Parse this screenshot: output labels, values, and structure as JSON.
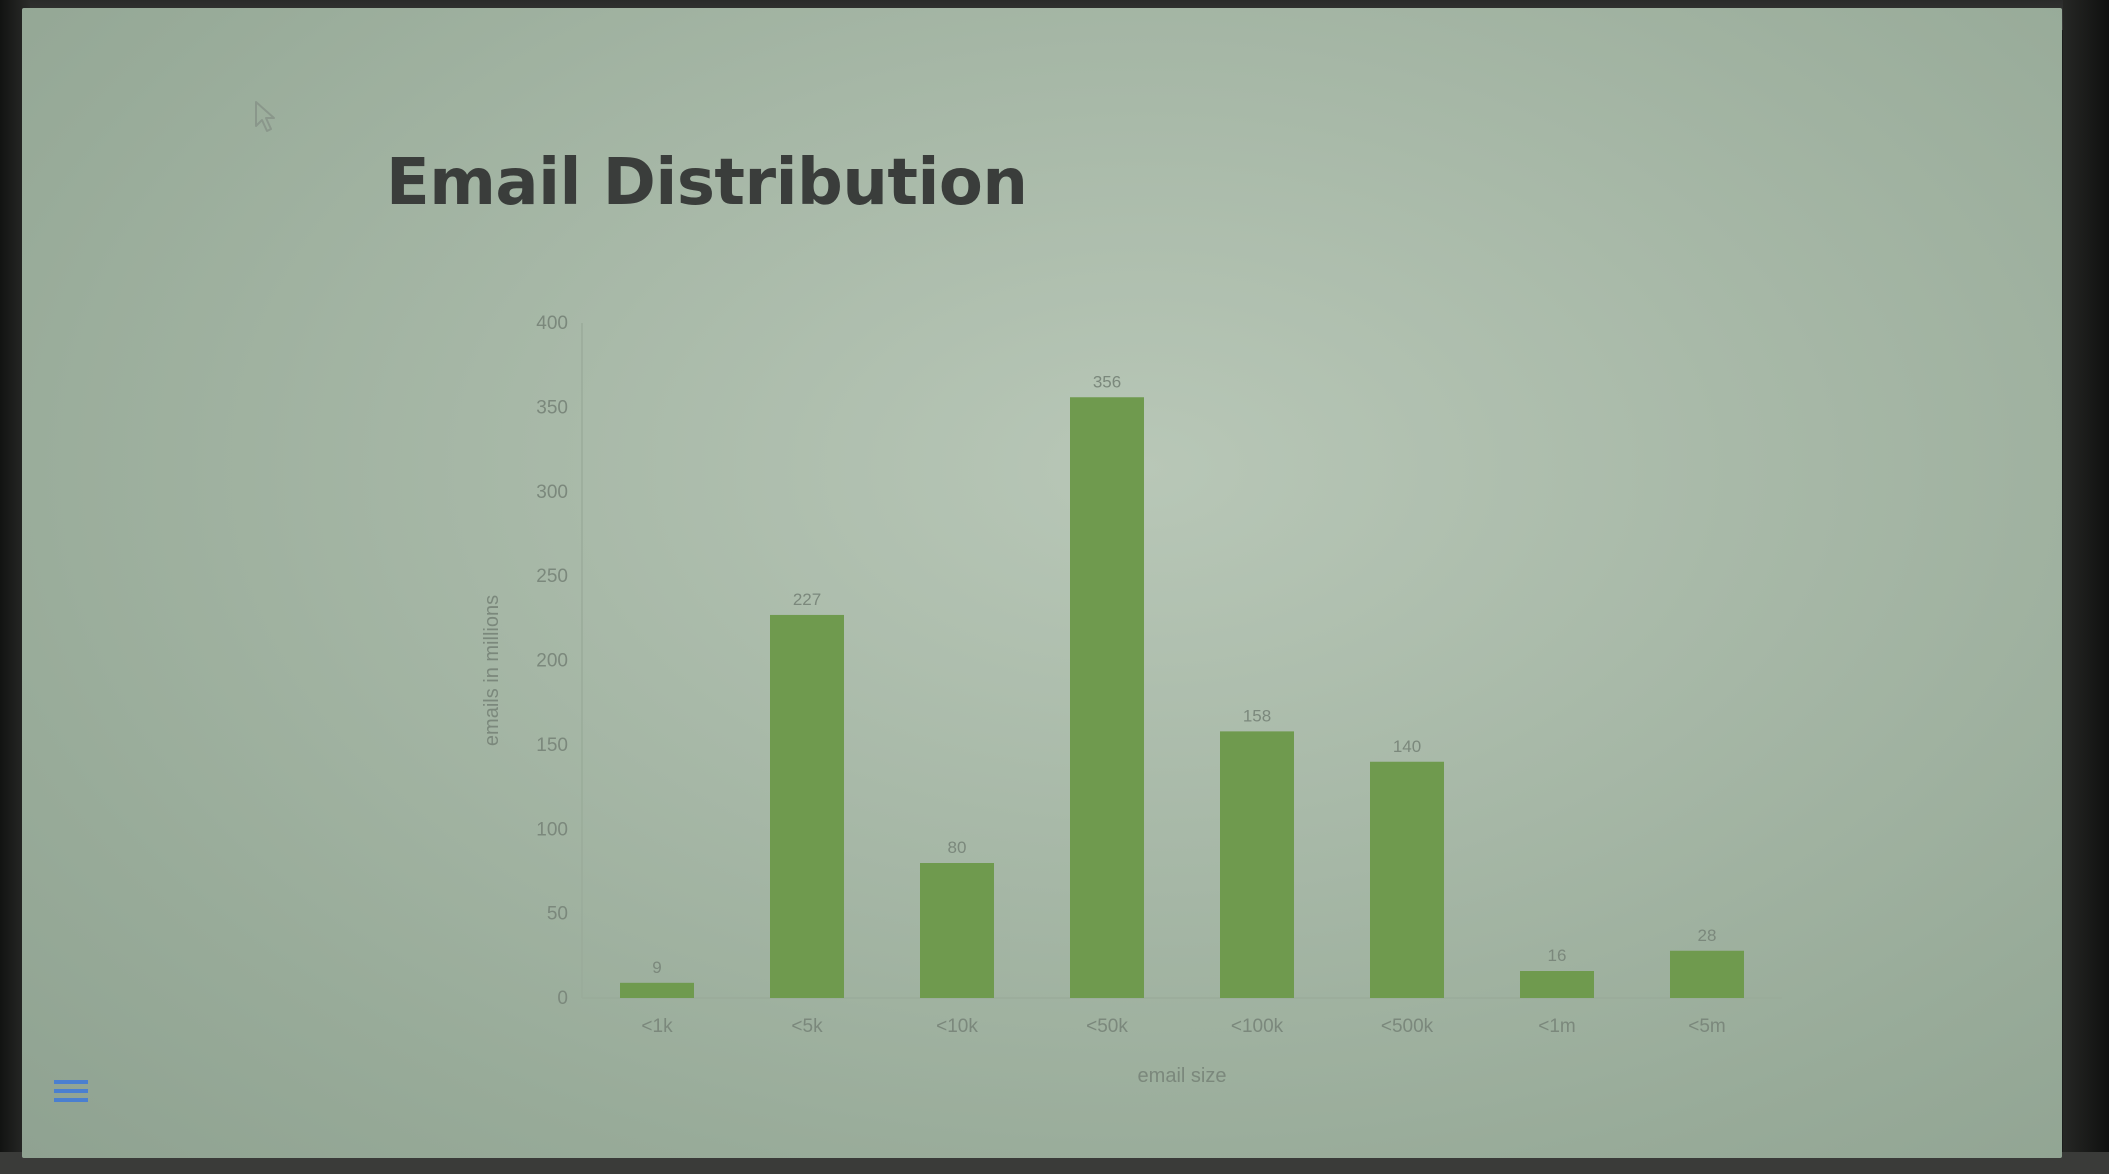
{
  "slide": {
    "title": "Email Distribution",
    "menu_icon": "hamburger-menu-icon",
    "cursor_icon": "mouse-pointer-icon"
  },
  "colors": {
    "bar": "#6f9a4e",
    "axis": "#9aab9a",
    "title": "#3a3d3b"
  },
  "chart_data": {
    "type": "bar",
    "title": "",
    "xlabel": "email size",
    "ylabel": "emails in millions",
    "ylim": [
      0,
      400
    ],
    "yticks": [
      0,
      50,
      100,
      150,
      200,
      250,
      300,
      350,
      400
    ],
    "categories": [
      "<1k",
      "<5k",
      "<10k",
      "<50k",
      "<100k",
      "<500k",
      "<1m",
      "<5m"
    ],
    "values": [
      9,
      227,
      80,
      356,
      158,
      140,
      16,
      28
    ],
    "data_labels": [
      "9",
      "227",
      "80",
      "356",
      "158",
      "140",
      "16",
      "28"
    ],
    "grid": false,
    "legend": "none"
  }
}
